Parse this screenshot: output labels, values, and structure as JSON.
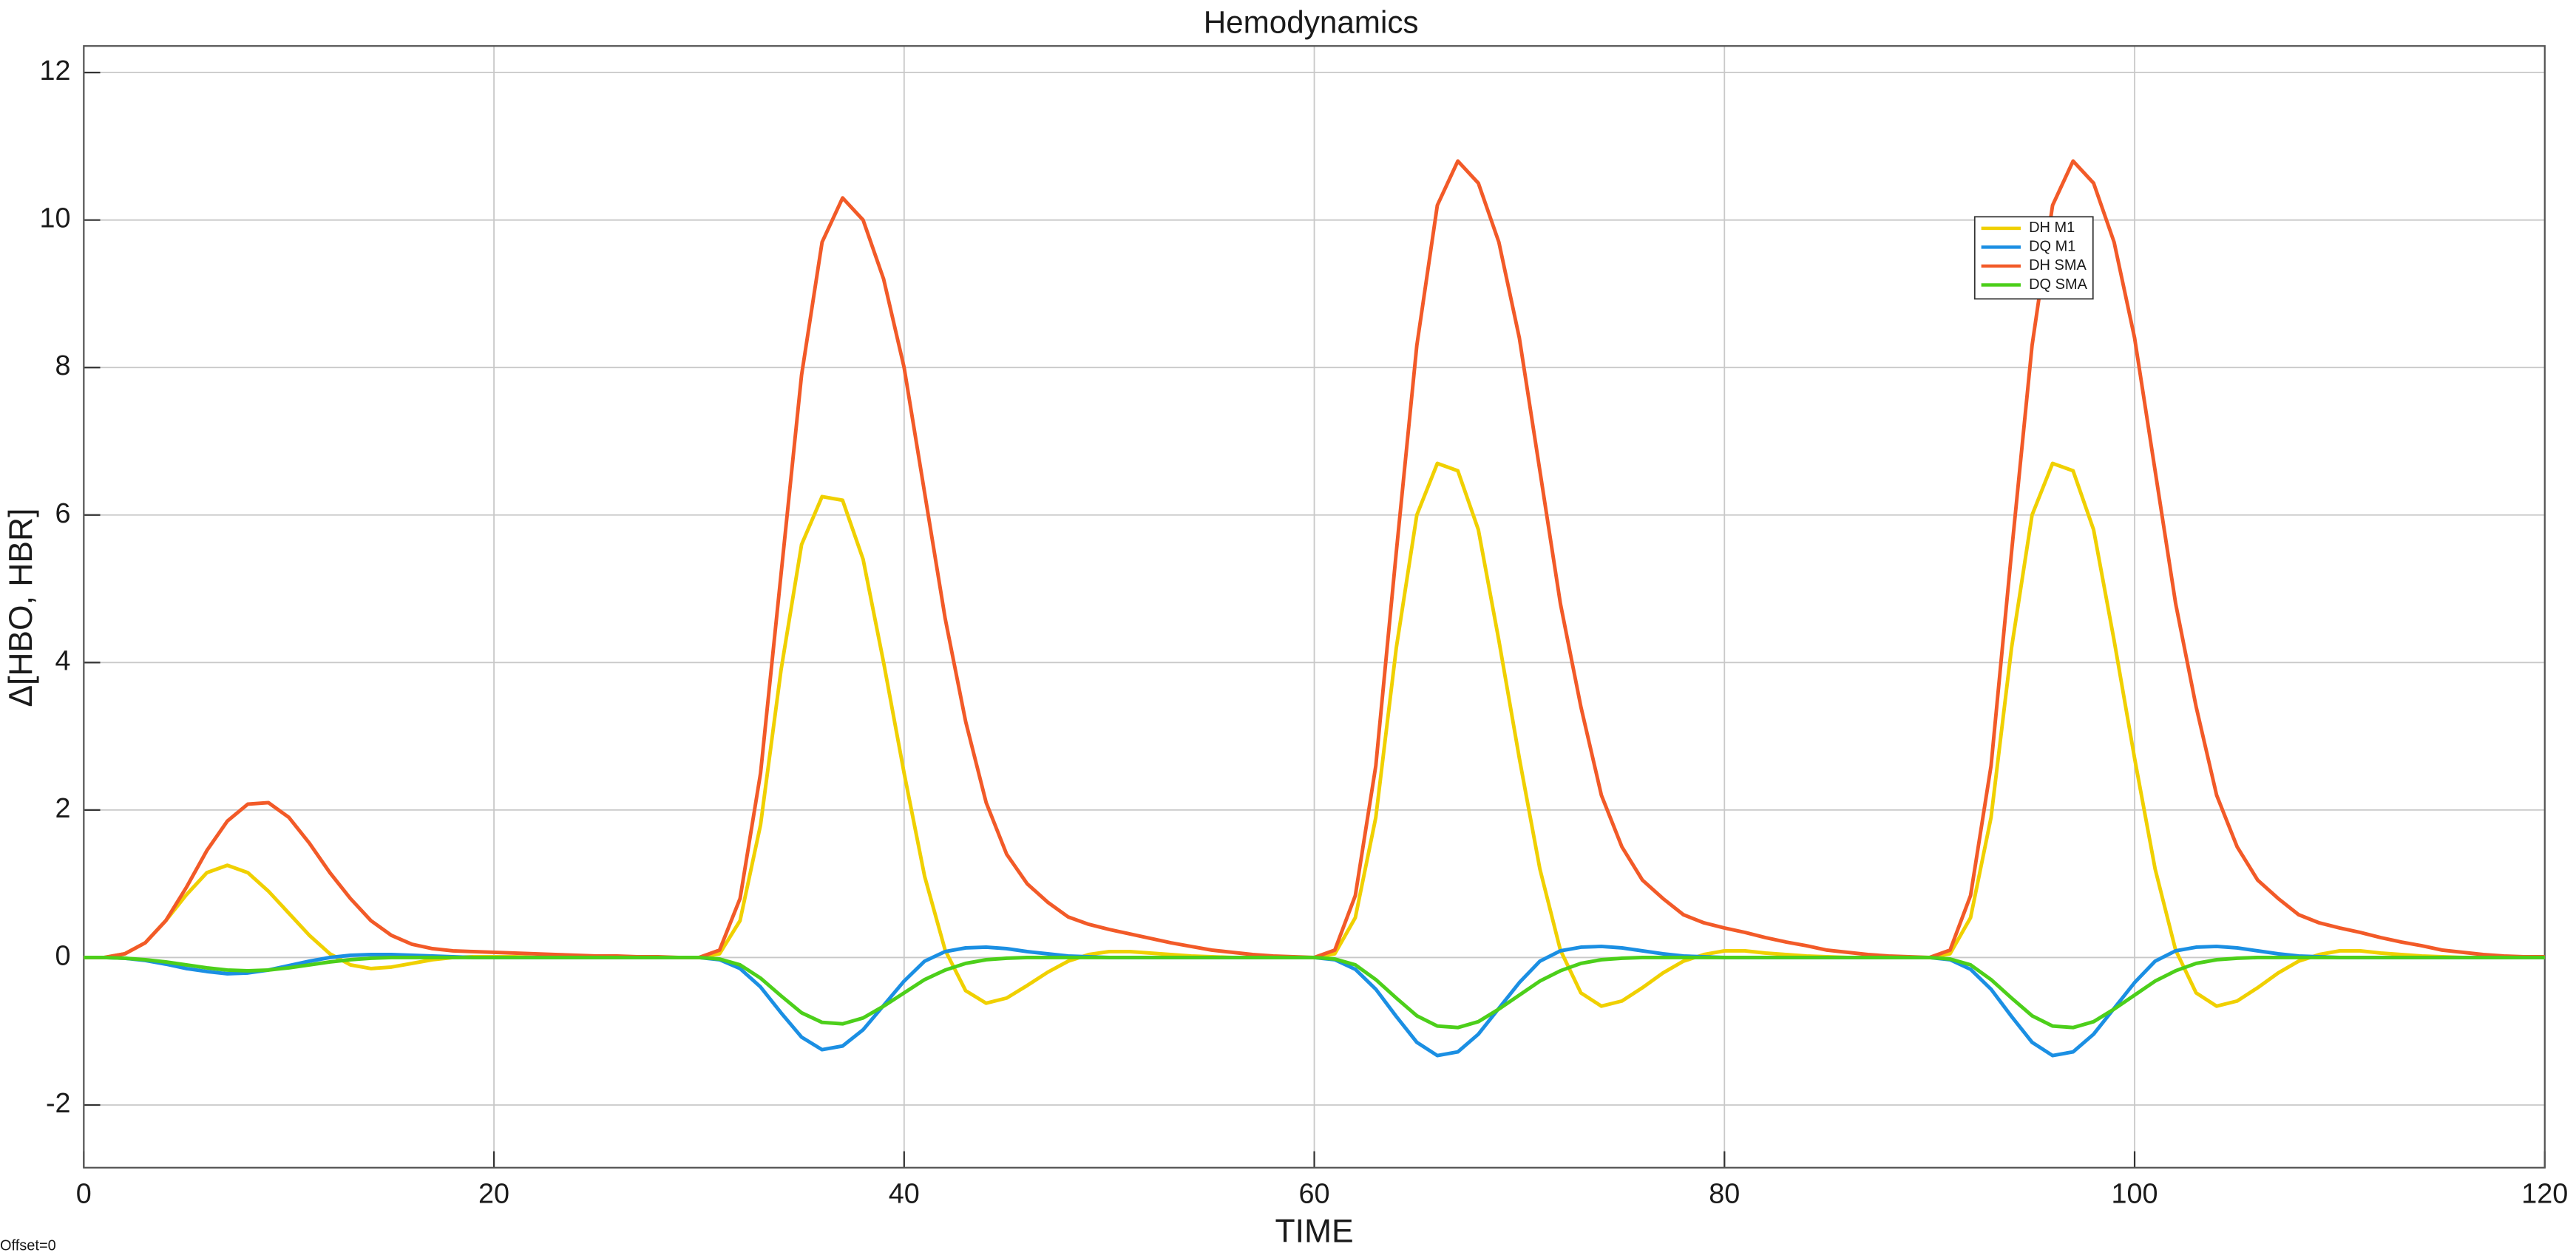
{
  "chart_data": {
    "type": "line",
    "title": "Hemodynamics",
    "x_label": "TIME",
    "y_label": "Δ[HBO, HBR]",
    "annotation": "Offset=0",
    "x": [
      0,
      1,
      2,
      3,
      4,
      5,
      6,
      7,
      8,
      9,
      10,
      11,
      12,
      13,
      14,
      15,
      16,
      17,
      18,
      19,
      20,
      21,
      22,
      23,
      24,
      25,
      26,
      27,
      28,
      29,
      30,
      31,
      32,
      33,
      34,
      35,
      36,
      37,
      38,
      39,
      40,
      41,
      42,
      43,
      44,
      45,
      46,
      47,
      48,
      49,
      50,
      51,
      52,
      53,
      54,
      55,
      56,
      57,
      58,
      59,
      60,
      61,
      62,
      63,
      64,
      65,
      66,
      67,
      68,
      69,
      70,
      71,
      72,
      73,
      74,
      75,
      76,
      77,
      78,
      79,
      80,
      81,
      82,
      83,
      84,
      85,
      86,
      87,
      88,
      89,
      90,
      91,
      92,
      93,
      94,
      95,
      96,
      97,
      98,
      99,
      100,
      101,
      102,
      103,
      104,
      105,
      106,
      107,
      108,
      109,
      110,
      111,
      112,
      113,
      114,
      115,
      116,
      117,
      118,
      119,
      120
    ],
    "series": [
      {
        "name": "DH M1",
        "color": "#f0d000",
        "values": [
          0,
          0,
          0.05,
          0.2,
          0.5,
          0.85,
          1.15,
          1.25,
          1.15,
          0.9,
          0.6,
          0.3,
          0.05,
          -0.1,
          -0.15,
          -0.13,
          -0.08,
          -0.03,
          0,
          0.01,
          0.01,
          0.01,
          0,
          0,
          0,
          0,
          0,
          0,
          0,
          0,
          0,
          0.05,
          0.5,
          1.8,
          3.9,
          5.6,
          6.25,
          6.2,
          5.4,
          4.0,
          2.5,
          1.1,
          0.1,
          -0.45,
          -0.62,
          -0.55,
          -0.38,
          -0.2,
          -0.05,
          0.04,
          0.08,
          0.08,
          0.06,
          0.04,
          0.02,
          0.01,
          0,
          0,
          0,
          0,
          0,
          0.05,
          0.54,
          1.9,
          4.2,
          6.0,
          6.7,
          6.6,
          5.8,
          4.3,
          2.7,
          1.2,
          0.1,
          -0.48,
          -0.66,
          -0.59,
          -0.41,
          -0.21,
          -0.05,
          0.04,
          0.09,
          0.09,
          0.06,
          0.04,
          0.02,
          0.01,
          0,
          0,
          0,
          0,
          0,
          0.05,
          0.54,
          1.9,
          4.2,
          6.0,
          6.7,
          6.6,
          5.8,
          4.3,
          2.7,
          1.2,
          0.1,
          -0.48,
          -0.66,
          -0.59,
          -0.41,
          -0.21,
          -0.05,
          0.04,
          0.09,
          0.09,
          0.06,
          0.04,
          0.02,
          0.01,
          0,
          0,
          0,
          0,
          0
        ]
      },
      {
        "name": "DQ M1",
        "color": "#1b8fe3",
        "values": [
          0,
          0,
          -0.01,
          -0.04,
          -0.09,
          -0.15,
          -0.19,
          -0.22,
          -0.21,
          -0.17,
          -0.11,
          -0.05,
          0,
          0.03,
          0.04,
          0.04,
          0.03,
          0.02,
          0.01,
          0,
          0,
          0,
          0,
          0,
          0,
          0,
          0,
          0,
          0,
          0,
          0,
          -0.03,
          -0.15,
          -0.4,
          -0.75,
          -1.08,
          -1.25,
          -1.2,
          -0.98,
          -0.65,
          -0.32,
          -0.05,
          0.08,
          0.13,
          0.14,
          0.12,
          0.08,
          0.05,
          0.02,
          0.01,
          0,
          0,
          0,
          0,
          0,
          0,
          0,
          0,
          0,
          0,
          0,
          -0.03,
          -0.16,
          -0.43,
          -0.8,
          -1.15,
          -1.33,
          -1.28,
          -1.04,
          -0.69,
          -0.34,
          -0.05,
          0.09,
          0.14,
          0.15,
          0.13,
          0.09,
          0.05,
          0.02,
          0.01,
          0,
          0,
          0,
          0,
          0,
          0,
          0,
          0,
          0,
          0,
          0,
          -0.03,
          -0.16,
          -0.43,
          -0.8,
          -1.15,
          -1.33,
          -1.28,
          -1.04,
          -0.69,
          -0.34,
          -0.05,
          0.09,
          0.14,
          0.15,
          0.13,
          0.09,
          0.05,
          0.02,
          0.01,
          0,
          0,
          0,
          0,
          0,
          0,
          0,
          0,
          0,
          0,
          0
        ]
      },
      {
        "name": "DH SMA",
        "color": "#f25a28",
        "values": [
          0,
          0,
          0.05,
          0.2,
          0.5,
          0.95,
          1.45,
          1.85,
          2.08,
          2.1,
          1.9,
          1.55,
          1.15,
          0.8,
          0.5,
          0.3,
          0.18,
          0.12,
          0.09,
          0.08,
          0.07,
          0.06,
          0.05,
          0.04,
          0.03,
          0.02,
          0.02,
          0.01,
          0.01,
          0,
          0,
          0.1,
          0.8,
          2.5,
          5.2,
          7.9,
          9.7,
          10.3,
          10.0,
          9.2,
          8.0,
          6.3,
          4.6,
          3.2,
          2.1,
          1.4,
          1.0,
          0.75,
          0.55,
          0.45,
          0.38,
          0.32,
          0.26,
          0.2,
          0.15,
          0.1,
          0.07,
          0.04,
          0.02,
          0.01,
          0,
          0.1,
          0.84,
          2.6,
          5.5,
          8.3,
          10.2,
          10.8,
          10.5,
          9.7,
          8.4,
          6.6,
          4.8,
          3.4,
          2.2,
          1.5,
          1.05,
          0.8,
          0.58,
          0.47,
          0.4,
          0.34,
          0.27,
          0.21,
          0.16,
          0.1,
          0.07,
          0.04,
          0.02,
          0.01,
          0,
          0.1,
          0.84,
          2.6,
          5.5,
          8.3,
          10.2,
          10.8,
          10.5,
          9.7,
          8.4,
          6.6,
          4.8,
          3.4,
          2.2,
          1.5,
          1.05,
          0.8,
          0.58,
          0.47,
          0.4,
          0.34,
          0.27,
          0.21,
          0.16,
          0.1,
          0.07,
          0.04,
          0.02,
          0.01,
          0.01
        ]
      },
      {
        "name": "DQ SMA",
        "color": "#4ccf1a",
        "values": [
          0,
          0,
          -0.01,
          -0.03,
          -0.06,
          -0.1,
          -0.14,
          -0.17,
          -0.18,
          -0.17,
          -0.14,
          -0.1,
          -0.06,
          -0.03,
          -0.01,
          0,
          0,
          0,
          0,
          0,
          0,
          0,
          0,
          0,
          0,
          0,
          0,
          0,
          0,
          0,
          0,
          -0.02,
          -0.1,
          -0.28,
          -0.52,
          -0.75,
          -0.88,
          -0.9,
          -0.82,
          -0.66,
          -0.48,
          -0.3,
          -0.17,
          -0.08,
          -0.03,
          -0.01,
          0,
          0,
          0,
          0,
          0,
          0,
          0,
          0,
          0,
          0,
          0,
          0,
          0,
          0,
          0,
          -0.02,
          -0.1,
          -0.3,
          -0.55,
          -0.79,
          -0.93,
          -0.95,
          -0.87,
          -0.7,
          -0.51,
          -0.32,
          -0.18,
          -0.08,
          -0.03,
          -0.01,
          0,
          0,
          0,
          0,
          0,
          0,
          0,
          0,
          0,
          0,
          0,
          0,
          0,
          0,
          0,
          -0.02,
          -0.1,
          -0.3,
          -0.55,
          -0.79,
          -0.93,
          -0.95,
          -0.87,
          -0.7,
          -0.51,
          -0.32,
          -0.18,
          -0.08,
          -0.03,
          -0.01,
          0,
          0,
          0,
          0,
          0,
          0,
          0,
          0,
          0,
          0,
          0,
          0,
          0,
          0,
          0
        ]
      }
    ],
    "xlim": [
      0,
      120
    ],
    "ylim": [
      -2.85,
      12.36
    ],
    "xticks": [
      0,
      20,
      40,
      60,
      80,
      100,
      120
    ],
    "yticks": [
      -2,
      0,
      2,
      4,
      6,
      8,
      10,
      12
    ],
    "grid": true,
    "legend_position": "northeast"
  }
}
